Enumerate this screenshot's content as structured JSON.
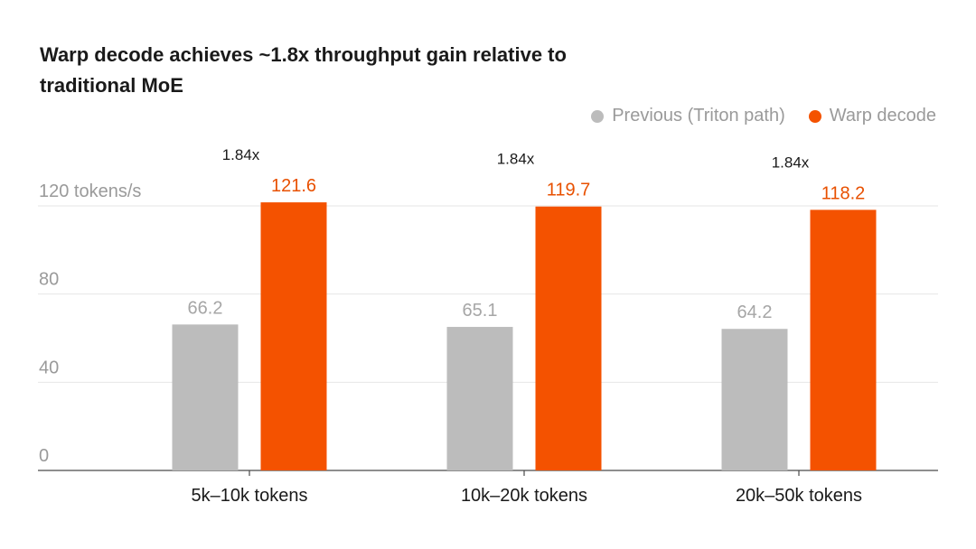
{
  "title": "Warp decode achieves ~1.8x throughput gain relative to traditional MoE",
  "legend": [
    {
      "label": "Previous (Triton path)",
      "color": "#bcbcbc"
    },
    {
      "label": "Warp decode",
      "color": "#f45200"
    }
  ],
  "chart_data": {
    "type": "bar",
    "title": "Warp decode achieves ~1.8x throughput gain relative to traditional MoE",
    "categories": [
      "5k–10k tokens",
      "10k–20k tokens",
      "20k–50k tokens"
    ],
    "series": [
      {
        "name": "Previous (Triton path)",
        "values": [
          66.2,
          65.1,
          64.2
        ],
        "color": "#bcbcbc",
        "label_color": "#a6a6a6"
      },
      {
        "name": "Warp decode",
        "values": [
          121.6,
          119.7,
          118.2
        ],
        "color": "#f45200",
        "label_color": "#e85000"
      }
    ],
    "speedup_labels": [
      "1.84x",
      "1.84x",
      "1.84x"
    ],
    "y_ticks": [
      {
        "value": 0,
        "label": "0"
      },
      {
        "value": 40,
        "label": "40"
      },
      {
        "value": 80,
        "label": "80"
      },
      {
        "value": 120,
        "label": "120 tokens/s"
      }
    ],
    "ylim": [
      0,
      120
    ],
    "grid": true,
    "legend_position": "top-right"
  }
}
